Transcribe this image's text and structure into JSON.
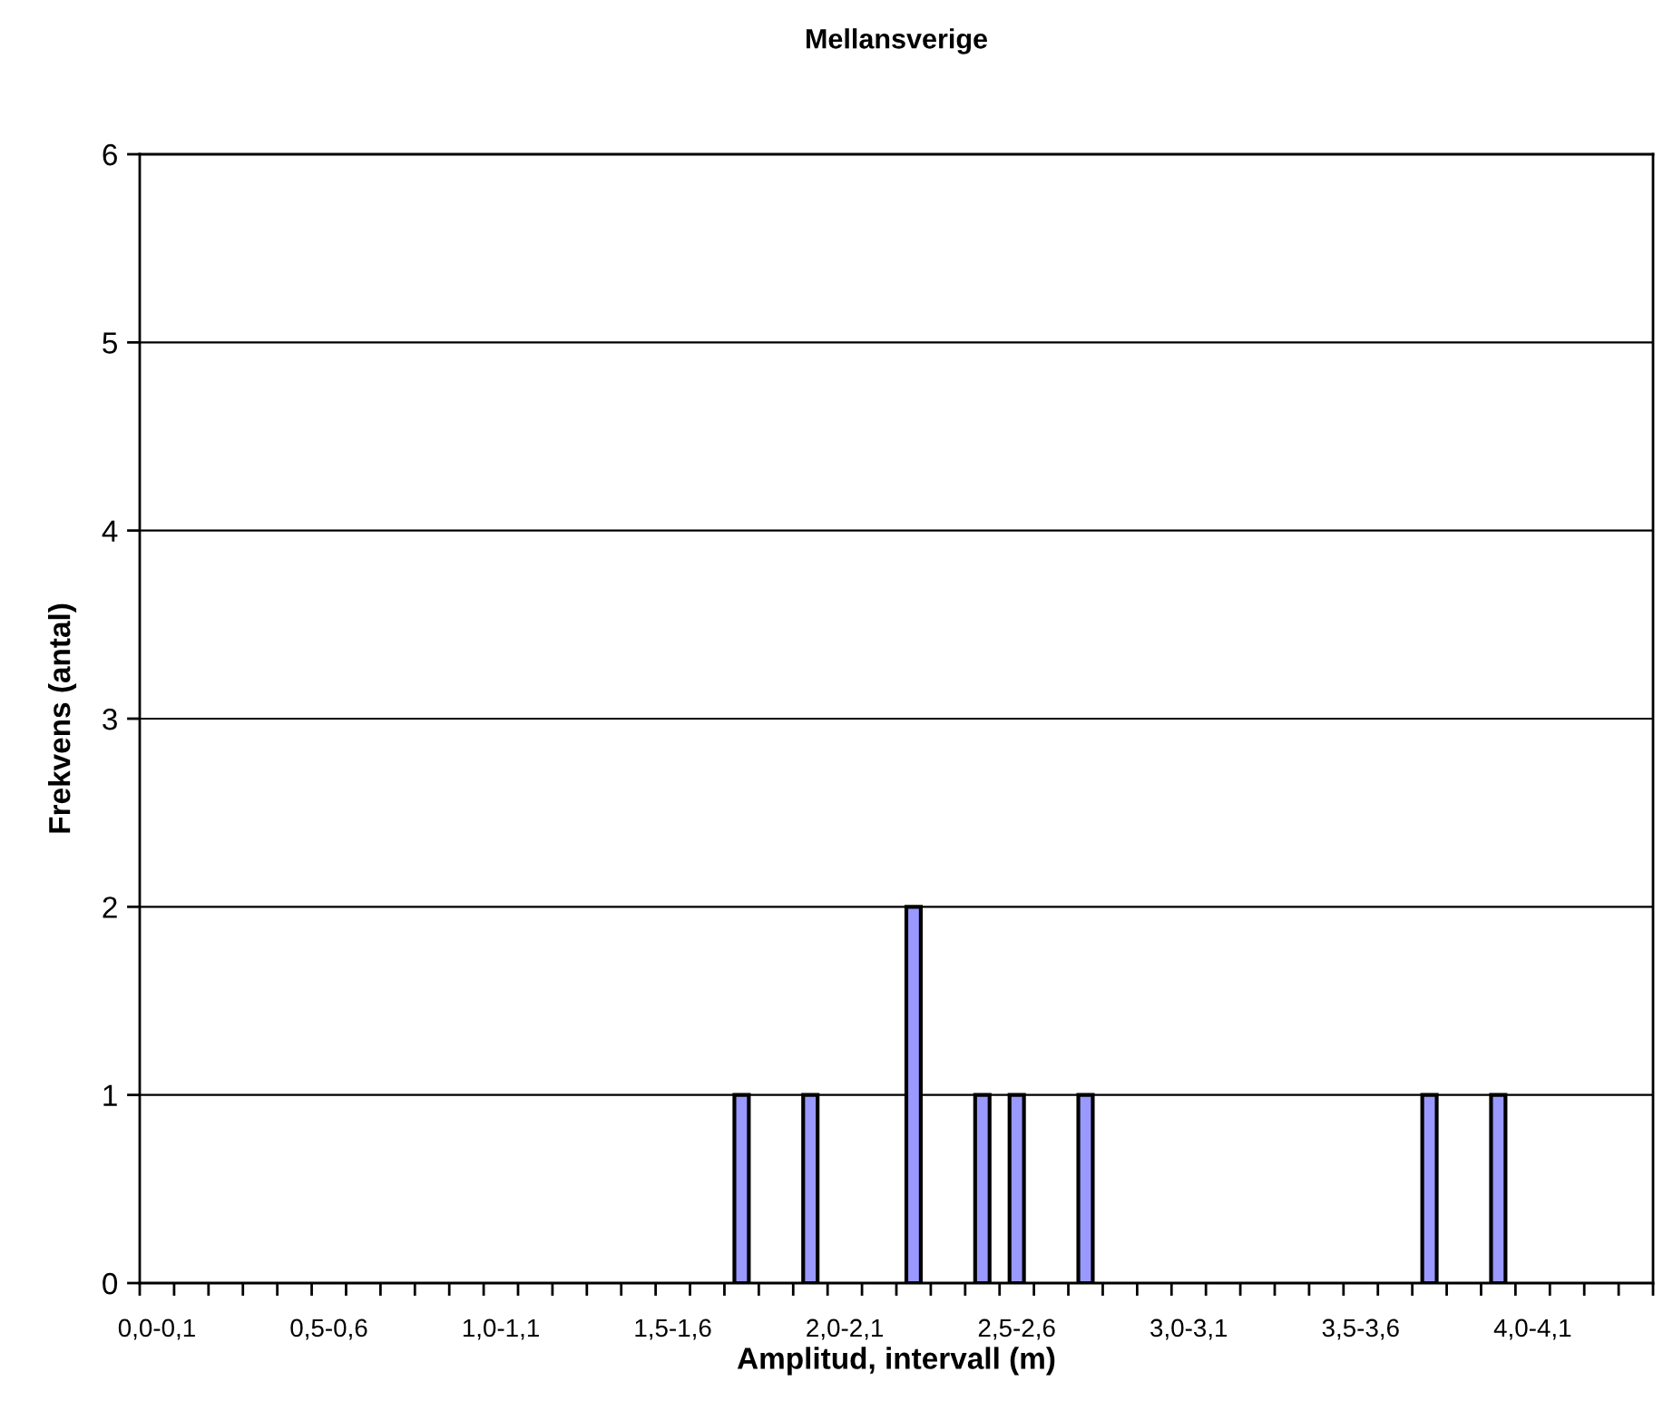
{
  "chart_data": {
    "type": "bar",
    "title": "Mellansverige",
    "xlabel": "Amplitud, intervall (m)",
    "ylabel": "Frekvens (antal)",
    "categories": [
      "0,0-0,1",
      null,
      null,
      null,
      null,
      "0,5-0,6",
      null,
      null,
      null,
      null,
      "1,0-1,1",
      null,
      null,
      null,
      null,
      "1,5-1,6",
      null,
      null,
      null,
      null,
      "2,0-2,1",
      null,
      null,
      null,
      null,
      "2,5-2,6",
      null,
      null,
      null,
      null,
      "3,0-3,1",
      null,
      null,
      null,
      null,
      "3,5-3,6",
      null,
      null,
      null,
      null,
      "4,0-4,1",
      null,
      null,
      null
    ],
    "values": [
      0,
      0,
      0,
      0,
      0,
      0,
      0,
      0,
      0,
      0,
      0,
      0,
      0,
      0,
      0,
      0,
      0,
      1,
      0,
      1,
      0,
      0,
      2,
      0,
      1,
      1,
      0,
      1,
      0,
      0,
      0,
      0,
      0,
      0,
      0,
      0,
      0,
      1,
      0,
      1,
      0,
      0,
      0,
      0
    ],
    "color": "#9999ff",
    "ylim": [
      0,
      6
    ],
    "yticks": [
      0,
      1,
      2,
      3,
      4,
      5,
      6
    ],
    "grid": "y",
    "legend": false
  }
}
